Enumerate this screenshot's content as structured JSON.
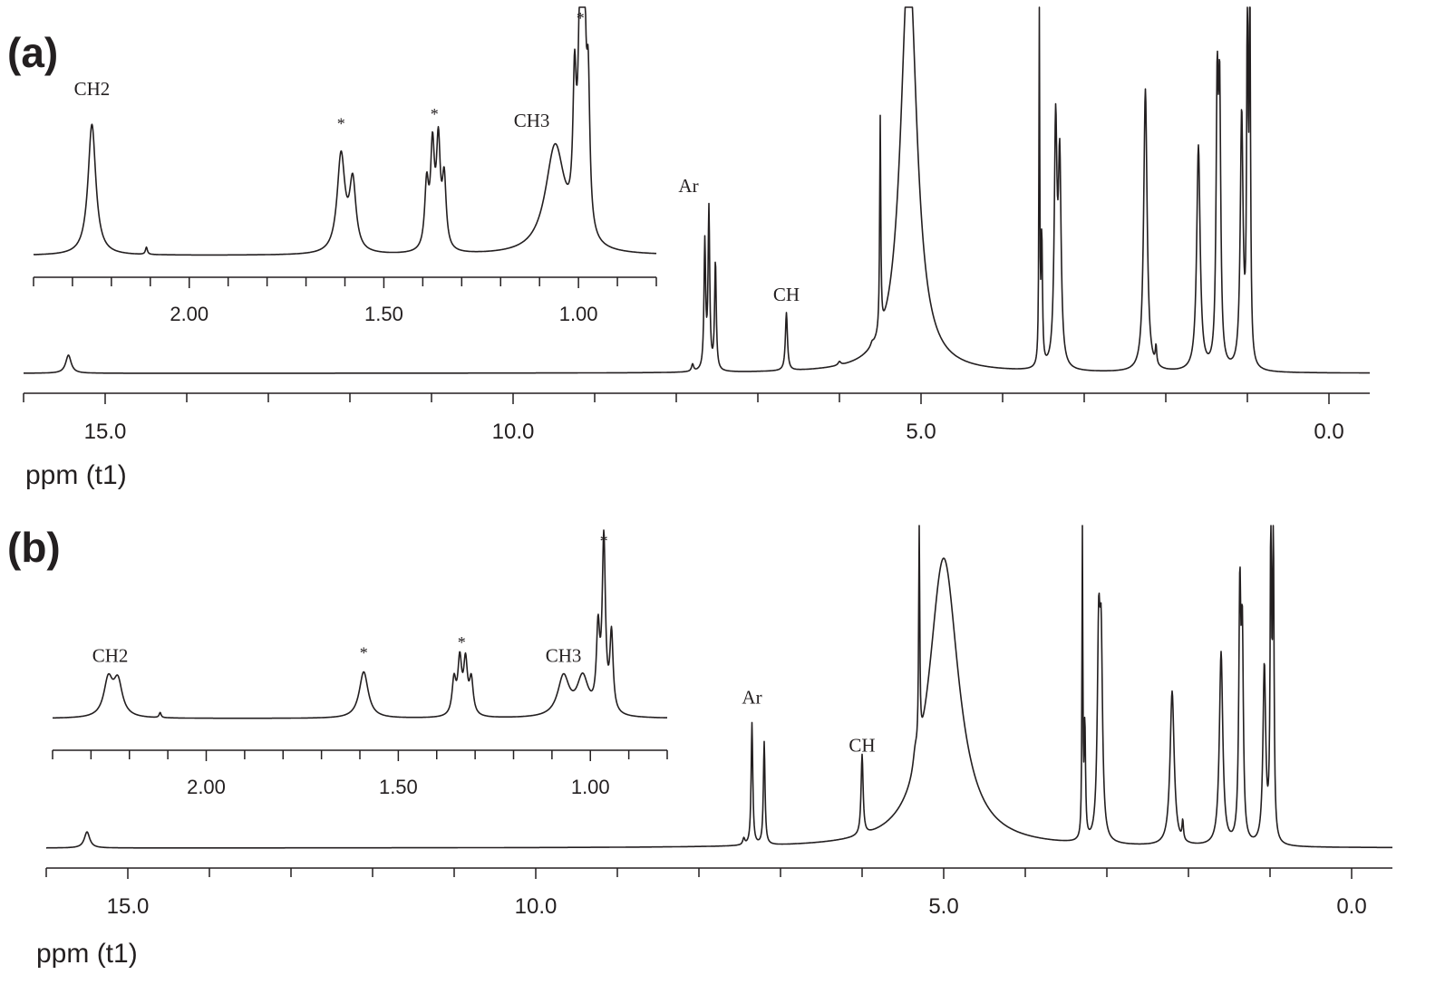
{
  "chart_data": [
    {
      "type": "line",
      "panel_label": "(a)",
      "xlabel": "ppm (t1)",
      "x_reversed": true,
      "xlim": [
        16.0,
        -0.5
      ],
      "xticks": [
        "15.0",
        "10.0",
        "5.0",
        "0.0"
      ],
      "xtick_values": [
        15.0,
        10.0,
        5.0,
        0.0
      ],
      "peaks": [
        {
          "ppm": 15.45,
          "height": 0.05,
          "width": 0.04
        },
        {
          "ppm": 7.8,
          "height": 0.02,
          "width": 0.015
        },
        {
          "ppm": 7.65,
          "height": 0.35,
          "width": 0.012
        },
        {
          "ppm": 7.6,
          "height": 0.44,
          "width": 0.012
        },
        {
          "ppm": 7.52,
          "height": 0.3,
          "width": 0.012
        },
        {
          "ppm": 6.65,
          "height": 0.16,
          "width": 0.015
        },
        {
          "ppm": 6.0,
          "height": 0.01,
          "width": 0.02
        },
        {
          "ppm": 5.6,
          "height": 0.01,
          "width": 0.02
        },
        {
          "ppm": 5.5,
          "height": 0.59,
          "width": 0.008
        },
        {
          "ppm": 5.15,
          "height": 1.15,
          "width": 0.12
        },
        {
          "ppm": 3.55,
          "height": 1.0,
          "width": 0.006
        },
        {
          "ppm": 3.52,
          "height": 0.35,
          "width": 0.01
        },
        {
          "ppm": 3.35,
          "height": 0.66,
          "width": 0.02
        },
        {
          "ppm": 3.3,
          "height": 0.55,
          "width": 0.02
        },
        {
          "ppm": 2.25,
          "height": 0.78,
          "width": 0.025
        },
        {
          "ppm": 2.12,
          "height": 0.05,
          "width": 0.01
        },
        {
          "ppm": 1.6,
          "height": 0.62,
          "width": 0.025
        },
        {
          "ppm": 1.37,
          "height": 0.72,
          "width": 0.016
        },
        {
          "ppm": 1.34,
          "height": 0.7,
          "width": 0.016
        },
        {
          "ppm": 1.07,
          "height": 0.7,
          "width": 0.02
        },
        {
          "ppm": 1.0,
          "height": 1.0,
          "width": 0.01
        },
        {
          "ppm": 0.97,
          "height": 1.0,
          "width": 0.01
        }
      ],
      "inset": {
        "xlim": [
          2.4,
          0.8
        ],
        "xticks": [
          "2.00",
          "1.50",
          "1.00"
        ],
        "xtick_values": [
          2.0,
          1.5,
          1.0
        ],
        "peaks": [
          {
            "ppm": 2.25,
            "height": 0.54,
            "width": 0.012
          },
          {
            "ppm": 2.11,
            "height": 0.03,
            "width": 0.003
          },
          {
            "ppm": 1.61,
            "height": 0.4,
            "width": 0.012
          },
          {
            "ppm": 1.58,
            "height": 0.28,
            "width": 0.01
          },
          {
            "ppm": 1.39,
            "height": 0.26,
            "width": 0.006
          },
          {
            "ppm": 1.375,
            "height": 0.4,
            "width": 0.006
          },
          {
            "ppm": 1.36,
            "height": 0.42,
            "width": 0.006
          },
          {
            "ppm": 1.345,
            "height": 0.28,
            "width": 0.006
          },
          {
            "ppm": 1.06,
            "height": 0.44,
            "width": 0.03
          },
          {
            "ppm": 1.01,
            "height": 0.55,
            "width": 0.005
          },
          {
            "ppm": 0.995,
            "height": 1.0,
            "width": 0.006
          },
          {
            "ppm": 0.985,
            "height": 0.8,
            "width": 0.005
          },
          {
            "ppm": 0.975,
            "height": 0.55,
            "width": 0.005
          }
        ],
        "annotations": [
          {
            "text": "CH2",
            "ppm": 2.25,
            "level": 0.66
          },
          {
            "text": "*",
            "ppm": 1.61,
            "level": 0.52
          },
          {
            "text": "*",
            "ppm": 1.37,
            "level": 0.56
          },
          {
            "text": "CH3",
            "ppm": 1.12,
            "level": 0.53
          },
          {
            "text": "*",
            "ppm": 0.995,
            "level": 1.04
          }
        ]
      },
      "annotations": [
        {
          "text": "Ar",
          "ppm": 7.85,
          "level": 0.5
        },
        {
          "text": "CH",
          "ppm": 6.65,
          "level": 0.2
        }
      ]
    },
    {
      "type": "line",
      "panel_label": "(b)",
      "xlabel": "ppm (t1)",
      "x_reversed": true,
      "xlim": [
        16.0,
        -0.5
      ],
      "xticks": [
        "15.0",
        "10.0",
        "5.0",
        "0.0"
      ],
      "xtick_values": [
        15.0,
        10.0,
        5.0,
        0.0
      ],
      "peaks": [
        {
          "ppm": 15.5,
          "height": 0.05,
          "width": 0.04
        },
        {
          "ppm": 7.45,
          "height": 0.02,
          "width": 0.015
        },
        {
          "ppm": 7.35,
          "height": 0.38,
          "width": 0.012
        },
        {
          "ppm": 7.2,
          "height": 0.32,
          "width": 0.012
        },
        {
          "ppm": 6.0,
          "height": 0.25,
          "width": 0.015
        },
        {
          "ppm": 5.35,
          "height": 0.05,
          "width": 0.03
        },
        {
          "ppm": 5.3,
          "height": 0.69,
          "width": 0.008
        },
        {
          "ppm": 5.0,
          "height": 0.9,
          "width": 0.22
        },
        {
          "ppm": 3.3,
          "height": 1.0,
          "width": 0.006
        },
        {
          "ppm": 3.27,
          "height": 0.35,
          "width": 0.01
        },
        {
          "ppm": 3.1,
          "height": 0.6,
          "width": 0.02
        },
        {
          "ppm": 3.07,
          "height": 0.55,
          "width": 0.02
        },
        {
          "ppm": 2.2,
          "height": 0.48,
          "width": 0.03
        },
        {
          "ppm": 2.07,
          "height": 0.06,
          "width": 0.01
        },
        {
          "ppm": 1.6,
          "height": 0.6,
          "width": 0.025
        },
        {
          "ppm": 1.37,
          "height": 0.75,
          "width": 0.015
        },
        {
          "ppm": 1.34,
          "height": 0.6,
          "width": 0.015
        },
        {
          "ppm": 1.07,
          "height": 0.55,
          "width": 0.02
        },
        {
          "ppm": 0.99,
          "height": 0.98,
          "width": 0.01
        },
        {
          "ppm": 0.96,
          "height": 0.96,
          "width": 0.01
        }
      ],
      "inset": {
        "xlim": [
          2.4,
          0.8
        ],
        "xticks": [
          "2.00",
          "1.50",
          "1.00"
        ],
        "xtick_values": [
          2.0,
          1.5,
          1.0
        ],
        "peaks": [
          {
            "ppm": 2.255,
            "height": 0.21,
            "width": 0.014
          },
          {
            "ppm": 2.23,
            "height": 0.2,
            "width": 0.014
          },
          {
            "ppm": 2.12,
            "height": 0.03,
            "width": 0.003
          },
          {
            "ppm": 1.59,
            "height": 0.27,
            "width": 0.014
          },
          {
            "ppm": 1.355,
            "height": 0.2,
            "width": 0.006
          },
          {
            "ppm": 1.34,
            "height": 0.31,
            "width": 0.006
          },
          {
            "ppm": 1.325,
            "height": 0.3,
            "width": 0.006
          },
          {
            "ppm": 1.31,
            "height": 0.2,
            "width": 0.006
          },
          {
            "ppm": 1.07,
            "height": 0.23,
            "width": 0.018
          },
          {
            "ppm": 1.02,
            "height": 0.22,
            "width": 0.018
          },
          {
            "ppm": 0.98,
            "height": 0.45,
            "width": 0.005
          },
          {
            "ppm": 0.965,
            "height": 1.0,
            "width": 0.005
          },
          {
            "ppm": 0.945,
            "height": 0.45,
            "width": 0.005
          }
        ],
        "annotations": [
          {
            "text": "CH2",
            "ppm": 2.25,
            "level": 0.33
          },
          {
            "text": "*",
            "ppm": 1.59,
            "level": 0.35
          },
          {
            "text": "*",
            "ppm": 1.335,
            "level": 0.41
          },
          {
            "text": "CH3",
            "ppm": 1.07,
            "level": 0.33
          },
          {
            "text": "*",
            "ppm": 0.965,
            "level": 1.04
          }
        ]
      },
      "annotations": [
        {
          "text": "Ar",
          "ppm": 7.35,
          "level": 0.45
        },
        {
          "text": "CH",
          "ppm": 6.0,
          "level": 0.3
        }
      ]
    }
  ]
}
